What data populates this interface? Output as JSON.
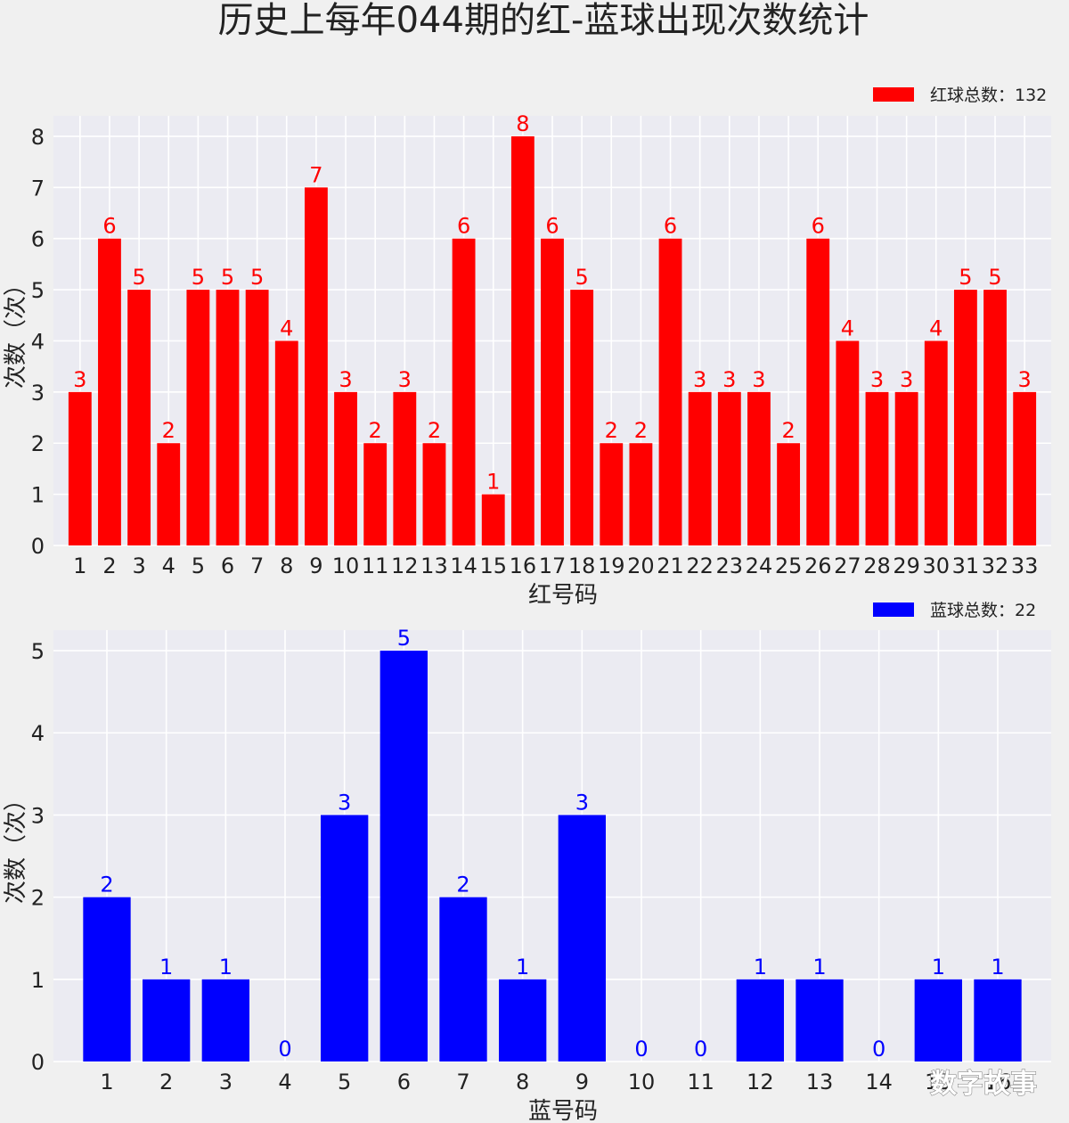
{
  "title": "历史上每年044期的红-蓝球出现次数统计",
  "watermark": "数字故事",
  "chart_data": [
    {
      "type": "bar",
      "xlabel": "红号码",
      "ylabel": "次数（次）",
      "ylim": [
        0,
        8.4
      ],
      "yticks": [
        0,
        1,
        2,
        3,
        4,
        5,
        6,
        7,
        8
      ],
      "grid": true,
      "legend": "红球总数：132",
      "legend_position": "top-right",
      "color": "#ff0000",
      "categories": [
        "1",
        "2",
        "3",
        "4",
        "5",
        "6",
        "7",
        "8",
        "9",
        "10",
        "11",
        "12",
        "13",
        "14",
        "15",
        "16",
        "17",
        "18",
        "19",
        "20",
        "21",
        "22",
        "23",
        "24",
        "25",
        "26",
        "27",
        "28",
        "29",
        "30",
        "31",
        "32",
        "33"
      ],
      "values": [
        3,
        6,
        5,
        2,
        5,
        5,
        5,
        4,
        7,
        3,
        2,
        3,
        2,
        6,
        1,
        8,
        6,
        5,
        2,
        2,
        6,
        3,
        3,
        3,
        2,
        6,
        4,
        3,
        3,
        4,
        5,
        5,
        3
      ]
    },
    {
      "type": "bar",
      "xlabel": "蓝号码",
      "ylabel": "次数（次）",
      "ylim": [
        0,
        5.25
      ],
      "yticks": [
        0,
        1,
        2,
        3,
        4,
        5
      ],
      "grid": true,
      "legend": "蓝球总数：22",
      "legend_position": "top-right",
      "color": "#0000ff",
      "categories": [
        "1",
        "2",
        "3",
        "4",
        "5",
        "6",
        "7",
        "8",
        "9",
        "10",
        "11",
        "12",
        "13",
        "14",
        "15",
        "16"
      ],
      "values": [
        2,
        1,
        1,
        0,
        3,
        5,
        2,
        1,
        3,
        0,
        0,
        1,
        1,
        0,
        1,
        1
      ]
    }
  ]
}
